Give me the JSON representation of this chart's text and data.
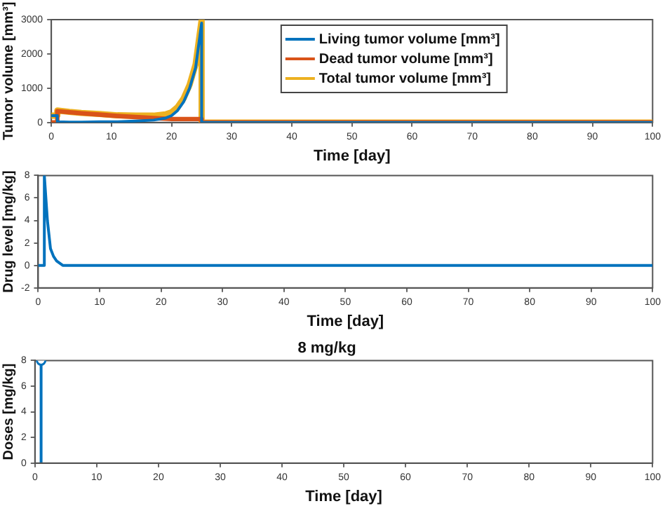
{
  "chart_data": [
    {
      "type": "line",
      "xlabel": "Time [day]",
      "ylabel": "Tumor volume [mm³]",
      "x": [
        0,
        1,
        1,
        3,
        5,
        8,
        11,
        14,
        17,
        19,
        20,
        21,
        22,
        23,
        24,
        25,
        25,
        100
      ],
      "series": [
        {
          "name": "Living tumor volume [mm³]",
          "color": "#0072bd",
          "values": [
            200,
            200,
            20,
            10,
            10,
            20,
            20,
            40,
            70,
            130,
            200,
            350,
            600,
            1000,
            1600,
            2900,
            0,
            0
          ]
        },
        {
          "name": "Dead tumor volume [mm³]",
          "color": "#d95319",
          "values": [
            0,
            0,
            330,
            300,
            270,
            230,
            190,
            160,
            130,
            110,
            100,
            100,
            100,
            100,
            100,
            100,
            0,
            0
          ]
        },
        {
          "name": "Total tumor volume [mm³]",
          "color": "#edb120",
          "values": [
            200,
            200,
            350,
            310,
            280,
            250,
            210,
            200,
            200,
            240,
            300,
            450,
            700,
            1100,
            1700,
            3000,
            0,
            0
          ]
        }
      ],
      "xlim": [
        0,
        100
      ],
      "xticks": [
        0,
        10,
        20,
        30,
        40,
        50,
        60,
        70,
        80,
        90,
        100
      ],
      "ylim": [
        0,
        3000
      ],
      "yticks": [
        0,
        1000,
        2000,
        3000
      ],
      "grid": false,
      "legend": "top"
    },
    {
      "type": "line",
      "xlabel": "Time [day]",
      "ylabel": "Drug level [mg/kg]",
      "x": [
        0,
        1,
        1,
        1.5,
        2,
        2.5,
        3,
        4,
        5,
        100
      ],
      "series": [
        {
          "color": "#0072bd",
          "values": [
            0,
            0,
            8,
            4,
            1.5,
            0.8,
            0.4,
            0,
            0,
            0
          ]
        }
      ],
      "xlim": [
        0,
        100
      ],
      "xticks": [
        0,
        10,
        20,
        30,
        40,
        50,
        60,
        70,
        80,
        90,
        100
      ],
      "ylim": [
        -2,
        8
      ],
      "yticks": [
        -2,
        0,
        2,
        4,
        6,
        8
      ],
      "grid": false
    },
    {
      "type": "lollipop",
      "title": "8 mg/kg",
      "xlabel": "Time [day]",
      "ylabel": "Doses [mg/kg]",
      "x": [
        1
      ],
      "series": [
        {
          "color": "#0072bd",
          "values": [
            8
          ]
        }
      ],
      "marker": "circle",
      "xlim": [
        0,
        100
      ],
      "xticks": [
        0,
        10,
        20,
        30,
        40,
        50,
        60,
        70,
        80,
        90,
        100
      ],
      "ylim": [
        0,
        8
      ],
      "yticks": [
        0,
        2,
        4,
        6,
        8
      ],
      "grid": false
    }
  ]
}
